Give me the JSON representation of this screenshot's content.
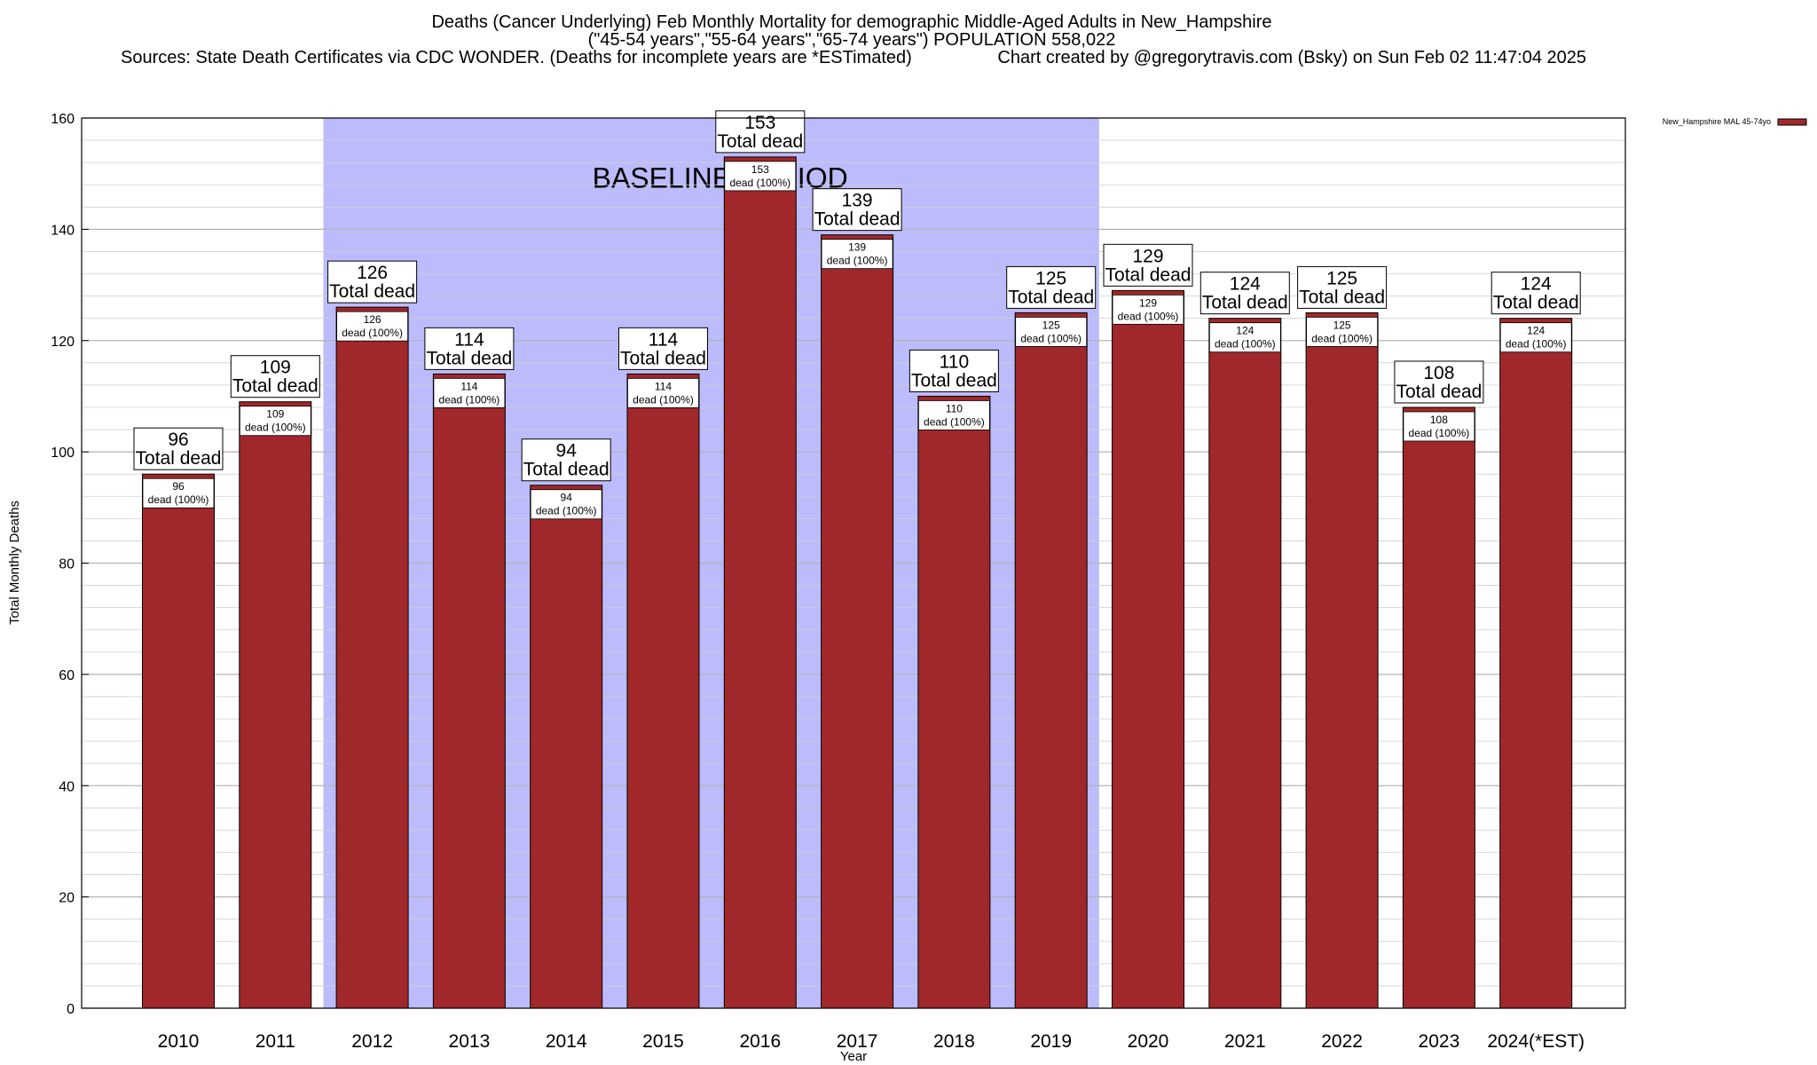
{
  "chart_data": {
    "type": "bar",
    "title": "Deaths (Cancer Underlying) Feb Monthly Mortality for demographic Middle-Aged Adults in New_Hampshire",
    "subtitle": "(\"45-54 years\",\"55-64 years\",\"65-74 years\") POPULATION 558,022",
    "sources": "Sources: State Death Certificates via CDC WONDER. (Deaths for incomplete years are *ESTimated)",
    "credit": "Chart created by @gregorytravis.com (Bsky) on Sun Feb 02 11:47:04 2025",
    "xlabel": "Year",
    "ylabel": "Total Monthly Deaths",
    "ylim": [
      0,
      160
    ],
    "yticks": [
      0,
      20,
      40,
      60,
      80,
      100,
      120,
      140,
      160
    ],
    "grid": true,
    "legend_placement": "top-right",
    "categories": [
      "2010",
      "2011",
      "2012",
      "2013",
      "2014",
      "2015",
      "2016",
      "2017",
      "2018",
      "2019",
      "2020",
      "2021",
      "2022",
      "2023",
      "2024(*EST)"
    ],
    "series": [
      {
        "name": "New_Hampshire MAL 45-74yo",
        "color": "#a0282a",
        "values": [
          96,
          109,
          126,
          114,
          94,
          114,
          153,
          139,
          110,
          125,
          129,
          124,
          125,
          108,
          124
        ]
      }
    ],
    "top_labels": [
      "96",
      "109",
      "126",
      "114",
      "94",
      "114",
      "153",
      "139",
      "110",
      "125",
      "129",
      "124",
      "125",
      "108",
      "124"
    ],
    "top_sub_label": "Total dead",
    "inner_labels": [
      "96",
      "109",
      "126",
      "114",
      "94",
      "114",
      "153",
      "139",
      "110",
      "125",
      "129",
      "124",
      "125",
      "108",
      "124"
    ],
    "inner_sub_label": "dead (100%)",
    "baseline": {
      "label": "BASELINE PERIOD",
      "from": "2012",
      "to": "2019",
      "color": "#bcbcfc"
    }
  }
}
